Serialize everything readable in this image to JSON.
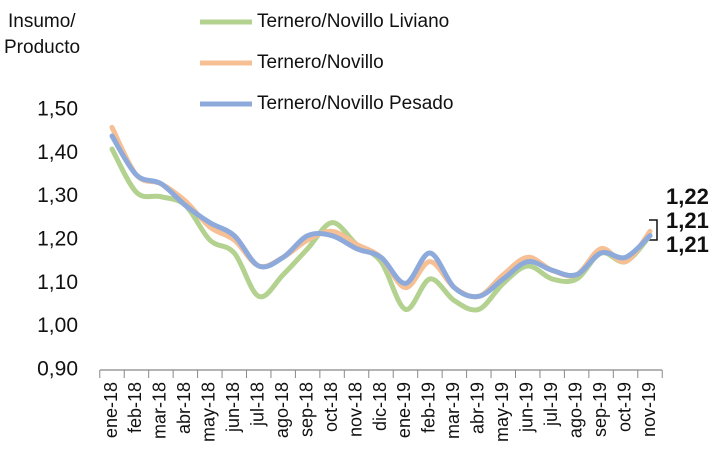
{
  "chart_data": {
    "type": "line",
    "y_label": [
      "Insumo/",
      "Producto"
    ],
    "categories": [
      "ene-18",
      "feb-18",
      "mar-18",
      "abr-18",
      "may-18",
      "jun-18",
      "jul-18",
      "ago-18",
      "sep-18",
      "oct-18",
      "nov-18",
      "dic-18",
      "ene-19",
      "feb-19",
      "mar-19",
      "abr-19",
      "may-19",
      "jun-19",
      "jul-19",
      "ago-19",
      "sep-19",
      "oct-19",
      "nov-19"
    ],
    "series": [
      {
        "name": "Ternero/Novillo Liviano",
        "color": "#b3d18f",
        "label_color": "#7cc142",
        "end_label": "1,21",
        "values": [
          1.41,
          1.31,
          1.3,
          1.28,
          1.2,
          1.17,
          1.07,
          1.12,
          1.18,
          1.24,
          1.19,
          1.15,
          1.04,
          1.11,
          1.06,
          1.04,
          1.1,
          1.14,
          1.11,
          1.11,
          1.17,
          1.15,
          1.21
        ]
      },
      {
        "name": "Ternero/Novillo",
        "color": "#f6bf94",
        "label_color": "#f0a080",
        "end_label": "1,22",
        "values": [
          1.46,
          1.35,
          1.33,
          1.29,
          1.23,
          1.2,
          1.14,
          1.16,
          1.2,
          1.22,
          1.19,
          1.16,
          1.09,
          1.15,
          1.09,
          1.07,
          1.12,
          1.16,
          1.13,
          1.12,
          1.18,
          1.15,
          1.22
        ]
      },
      {
        "name": "Ternero/Novillo Pesado",
        "color": "#8eaadb",
        "label_color": "#b9cbe8",
        "end_label": "1,21",
        "values": [
          1.44,
          1.35,
          1.33,
          1.28,
          1.24,
          1.21,
          1.14,
          1.16,
          1.21,
          1.21,
          1.18,
          1.16,
          1.1,
          1.17,
          1.09,
          1.07,
          1.11,
          1.15,
          1.13,
          1.12,
          1.17,
          1.16,
          1.21
        ]
      }
    ],
    "ylim": [
      0.9,
      1.5
    ],
    "yticks": [
      {
        "value": 0.9,
        "label": "0,90"
      },
      {
        "value": 1.0,
        "label": "1,00"
      },
      {
        "value": 1.1,
        "label": "1,10"
      },
      {
        "value": 1.2,
        "label": "1,20"
      },
      {
        "value": 1.3,
        "label": "1,30"
      },
      {
        "value": 1.4,
        "label": "1,40"
      },
      {
        "value": 1.5,
        "label": "1,50"
      }
    ],
    "grid": false
  }
}
